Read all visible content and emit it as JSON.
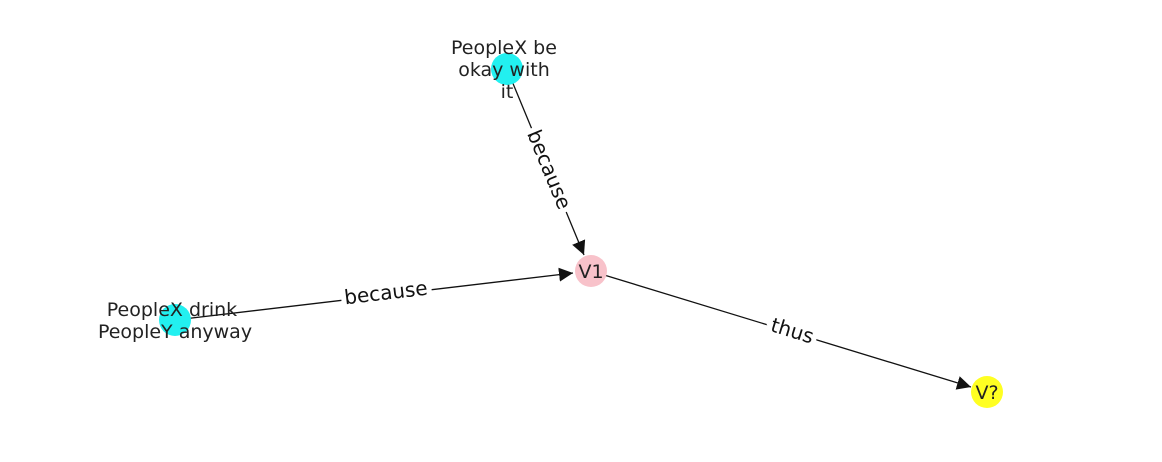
{
  "diagram": {
    "nodes": [
      {
        "id": "n1",
        "label_lines": [
          "PeopleX be",
          "okay with",
          "it"
        ],
        "color": "#22F0F0"
      },
      {
        "id": "n2",
        "label_lines": [
          "PeopleX drink",
          "PeopleY anyway"
        ],
        "color": "#22F0F0"
      },
      {
        "id": "n3",
        "label_lines": [
          "V1"
        ],
        "color": "#F8C2CA"
      },
      {
        "id": "n4",
        "label_lines": [
          "V?"
        ],
        "color": "#FFFF22"
      }
    ],
    "edges": [
      {
        "from": "n1",
        "to": "n3",
        "label": "because"
      },
      {
        "from": "n2",
        "to": "n3",
        "label": "because"
      },
      {
        "from": "n3",
        "to": "n4",
        "label": "thus"
      }
    ]
  }
}
